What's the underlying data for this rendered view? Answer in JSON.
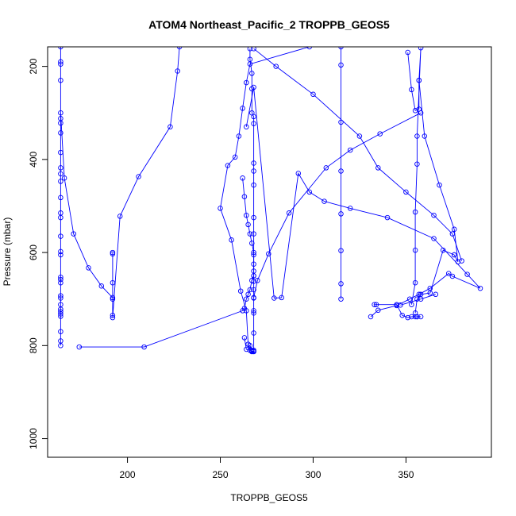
{
  "chart_data": {
    "type": "line",
    "title": "ATOM4 Northeast_Pacific_2 TROPPB_GEOS5",
    "xlabel": "TROPPB_GEOS5",
    "ylabel": "Pressure (mbar)",
    "xlim": [
      157,
      396
    ],
    "ylim": [
      1040,
      158
    ],
    "y_reversed": true,
    "xticks": [
      200,
      250,
      300,
      350
    ],
    "yticks": [
      200,
      400,
      600,
      800,
      1000
    ],
    "grid": false,
    "legend": "none",
    "series_color": "#0000ff",
    "marker": "open-circle",
    "series": [
      {
        "x": [
          164,
          164,
          164,
          164,
          164,
          164,
          164,
          164,
          164,
          164,
          164,
          164,
          164,
          164,
          164,
          164,
          164,
          164,
          164,
          164,
          164,
          164,
          164,
          164,
          164,
          164,
          164,
          164,
          164,
          164
        ],
        "y": [
          158,
          190,
          195,
          230,
          312,
          322,
          343,
          385,
          418,
          431,
          447,
          482,
          515,
          525,
          565,
          598,
          605,
          653,
          658,
          665,
          693,
          698,
          712,
          722,
          727,
          732,
          737,
          770,
          790,
          800
        ]
      },
      {
        "x": [
          164,
          166,
          171,
          179,
          186,
          192,
          192,
          192,
          192,
          192,
          192,
          192,
          196,
          206,
          223,
          227,
          228
        ],
        "y": [
          300,
          440,
          560,
          633,
          672,
          697,
          700,
          665,
          603,
          600,
          735,
          740,
          522,
          437,
          330,
          210,
          158
        ]
      },
      {
        "x": [
          174,
          209,
          262,
          263,
          264,
          265,
          266,
          267,
          268,
          268,
          268,
          268,
          267,
          266,
          265,
          264,
          263,
          262
        ],
        "y": [
          803,
          803,
          725,
          720,
          700,
          690,
          680,
          660,
          650,
          640,
          625,
          600,
          580,
          560,
          540,
          520,
          480,
          440
        ]
      },
      {
        "x": [
          298,
          266,
          264,
          262,
          260,
          258,
          254,
          250,
          256,
          261,
          264,
          265,
          266,
          267,
          267,
          268,
          268,
          268,
          267,
          267,
          266,
          266,
          264,
          263
        ],
        "y": [
          158,
          195,
          235,
          290,
          350,
          395,
          413,
          505,
          573,
          683,
          725,
          797,
          810,
          813,
          813,
          813,
          813,
          812,
          812,
          810,
          800,
          810,
          808,
          783
        ]
      },
      {
        "x": [
          266,
          266,
          267,
          267,
          267,
          268,
          268,
          268,
          268,
          268,
          268,
          268,
          268,
          268,
          268,
          268,
          268,
          268,
          268,
          268,
          268
        ],
        "y": [
          162,
          185,
          215,
          248,
          300,
          308,
          323,
          408,
          425,
          455,
          525,
          560,
          605,
          650,
          662,
          680,
          698,
          725,
          730,
          773,
          810
        ]
      },
      {
        "x": [
          264,
          268,
          279,
          283,
          292,
          298,
          306,
          320,
          340,
          365,
          383,
          390,
          375,
          373,
          363,
          357,
          352,
          345,
          335,
          331
        ],
        "y": [
          330,
          245,
          698,
          697,
          430,
          470,
          490,
          505,
          525,
          570,
          647,
          677,
          651,
          645,
          677,
          690,
          700,
          714,
          724,
          738
        ]
      },
      {
        "x": [
          268,
          270,
          276,
          287,
          307,
          320,
          336,
          358
        ],
        "y": [
          697,
          660,
          603,
          515,
          418,
          380,
          345,
          300
        ]
      },
      {
        "x": [
          268,
          280,
          300,
          325,
          335,
          350,
          365,
          375,
          380
        ],
        "y": [
          162,
          200,
          260,
          350,
          418,
          470,
          520,
          560,
          618
        ]
      },
      {
        "x": [
          315,
          315,
          315,
          315,
          315,
          315,
          315,
          315
        ],
        "y": [
          158,
          197,
          320,
          425,
          517,
          596,
          667,
          700
        ]
      },
      {
        "x": [
          351,
          353,
          355,
          357,
          357,
          358,
          356,
          356,
          355,
          355,
          355,
          353
        ],
        "y": [
          170,
          250,
          295,
          292,
          230,
          160,
          350,
          410,
          513,
          595,
          665,
          712
        ]
      },
      {
        "x": [
          357,
          360,
          368,
          376,
          378,
          376
        ],
        "y": [
          230,
          350,
          455,
          550,
          620,
          605
        ]
      },
      {
        "x": [
          333,
          334,
          345,
          348,
          351,
          353,
          355,
          356,
          356,
          358
        ],
        "y": [
          712,
          712,
          712,
          735,
          740,
          738,
          738,
          738,
          738,
          738
        ]
      },
      {
        "x": [
          355,
          356,
          358,
          363,
          370,
          376
        ],
        "y": [
          730,
          700,
          690,
          687,
          595,
          605
        ]
      },
      {
        "x": [
          366,
          358,
          347
        ],
        "y": [
          690,
          700,
          713
        ]
      }
    ]
  }
}
